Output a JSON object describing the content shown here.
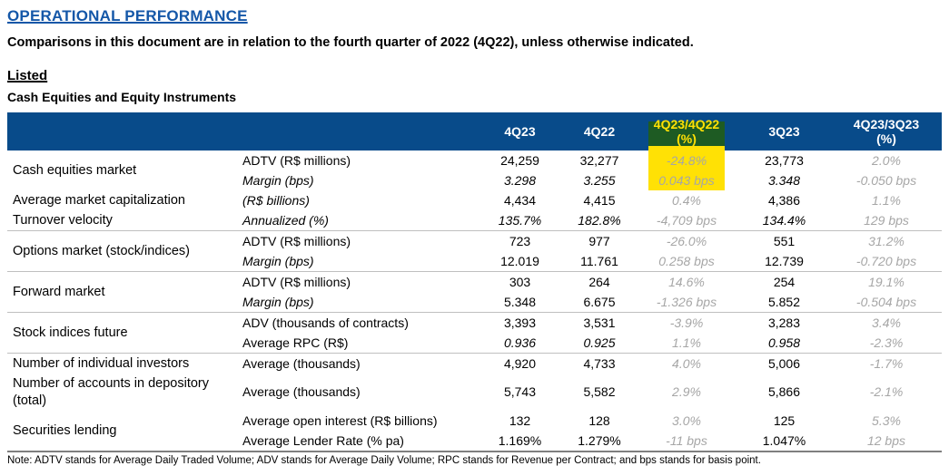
{
  "page": {
    "title": "OPERATIONAL PERFORMANCE",
    "subtitle": "Comparisons in this document are in relation to the fourth quarter of 2022 (4Q22), unless otherwise indicated.",
    "section_heading": "Listed",
    "table_heading": "Cash Equities and Equity Instruments",
    "note": "Note: ADTV stands for Average Daily Traded Volume; ADV stands for Average Daily Volume; RPC stands for Revenue per Contract; and bps stands for basis point."
  },
  "colors": {
    "header_bg": "#084B8A",
    "title_blue": "#1457A8",
    "highlight_green": "#1E5B23",
    "highlight_yellow": "#FFE105",
    "change_gray": "#A6A6A6",
    "separator_light": "#BFBFBF",
    "separator_dark": "#7F7F7F"
  },
  "table": {
    "headers": [
      {
        "label": "4Q23"
      },
      {
        "label": "4Q22"
      },
      {
        "label": "4Q23/4Q22",
        "sub": "(%)",
        "highlight": true
      },
      {
        "label": "3Q23"
      },
      {
        "label": "4Q23/3Q23",
        "sub": "(%)"
      }
    ],
    "rows": [
      {
        "g": "Cash equities market",
        "gs": 2,
        "m": "ADTV (R$ millions)",
        "cells": [
          {
            "t": "24,259"
          },
          {
            "t": "32,277"
          },
          {
            "t": "-24.8%",
            "c": 1,
            "h": 1
          },
          {
            "t": "23,773"
          },
          {
            "t": "2.0%",
            "c": 1
          }
        ]
      },
      {
        "m": "Margin (bps)",
        "mi": 1,
        "cells": [
          {
            "t": "3.298",
            "i": 1
          },
          {
            "t": "3.255",
            "i": 1
          },
          {
            "t": "0.043 bps",
            "c": 1,
            "h": 1
          },
          {
            "t": "3.348",
            "i": 1
          },
          {
            "t": "-0.050 bps",
            "c": 1
          }
        ]
      },
      {
        "g": "Average market capitalization",
        "gs": 1,
        "m": "(R$ billions)",
        "mi": 1,
        "cells": [
          {
            "t": "4,434"
          },
          {
            "t": "4,415"
          },
          {
            "t": "0.4%",
            "c": 1
          },
          {
            "t": "4,386"
          },
          {
            "t": "1.1%",
            "c": 1
          }
        ]
      },
      {
        "g": "Turnover velocity",
        "gs": 1,
        "m": "Annualized (%)",
        "mi": 1,
        "cells": [
          {
            "t": "135.7%",
            "i": 1
          },
          {
            "t": "182.8%",
            "i": 1
          },
          {
            "t": "-4,709 bps",
            "c": 1
          },
          {
            "t": "134.4%",
            "i": 1
          },
          {
            "t": "129 bps",
            "c": 1
          }
        ]
      },
      {
        "s": 1,
        "g": "Options market (stock/indices)",
        "gs": 2,
        "m": "ADTV (R$ millions)",
        "cells": [
          {
            "t": "723"
          },
          {
            "t": "977"
          },
          {
            "t": "-26.0%",
            "c": 1
          },
          {
            "t": "551"
          },
          {
            "t": "31.2%",
            "c": 1
          }
        ]
      },
      {
        "m": "Margin (bps)",
        "mi": 1,
        "cells": [
          {
            "t": "12.019"
          },
          {
            "t": "11.761"
          },
          {
            "t": "0.258 bps",
            "c": 1
          },
          {
            "t": "12.739"
          },
          {
            "t": "-0.720 bps",
            "c": 1
          }
        ]
      },
      {
        "s": 1,
        "g": "Forward market",
        "gs": 2,
        "m": "ADTV (R$ millions)",
        "cells": [
          {
            "t": "303"
          },
          {
            "t": "264"
          },
          {
            "t": "14.6%",
            "c": 1
          },
          {
            "t": "254"
          },
          {
            "t": "19.1%",
            "c": 1
          }
        ]
      },
      {
        "m": "Margin (bps)",
        "mi": 1,
        "cells": [
          {
            "t": "5.348"
          },
          {
            "t": "6.675"
          },
          {
            "t": "-1.326 bps",
            "c": 1
          },
          {
            "t": "5.852"
          },
          {
            "t": "-0.504 bps",
            "c": 1
          }
        ]
      },
      {
        "s": 1,
        "g": "Stock indices future",
        "gs": 2,
        "m": "ADV (thousands of contracts)",
        "cells": [
          {
            "t": "3,393"
          },
          {
            "t": "3,531"
          },
          {
            "t": "-3.9%",
            "c": 1
          },
          {
            "t": "3,283"
          },
          {
            "t": "3.4%",
            "c": 1
          }
        ]
      },
      {
        "m": "Average RPC (R$)",
        "cells": [
          {
            "t": "0.936",
            "i": 1
          },
          {
            "t": "0.925",
            "i": 1
          },
          {
            "t": "1.1%",
            "c": 1
          },
          {
            "t": "0.958",
            "i": 1
          },
          {
            "t": "-2.3%",
            "c": 1
          }
        ]
      },
      {
        "s": 1,
        "g": "Number of individual investors",
        "gs": 1,
        "m": "Average (thousands)",
        "cells": [
          {
            "t": "4,920"
          },
          {
            "t": "4,733"
          },
          {
            "t": "4.0%",
            "c": 1
          },
          {
            "t": "5,006"
          },
          {
            "t": "-1.7%",
            "c": 1
          }
        ]
      },
      {
        "g": "Number of accounts in depository (total)",
        "gs": 1,
        "m": "Average (thousands)",
        "cells": [
          {
            "t": "5,743"
          },
          {
            "t": "5,582"
          },
          {
            "t": "2.9%",
            "c": 1
          },
          {
            "t": "5,866"
          },
          {
            "t": "-2.1%",
            "c": 1
          }
        ]
      },
      {
        "g": "Securities lending",
        "gs": 2,
        "m": "Average open interest (R$ billions)",
        "cells": [
          {
            "t": "132"
          },
          {
            "t": "128"
          },
          {
            "t": "3.0%",
            "c": 1
          },
          {
            "t": "125"
          },
          {
            "t": "5.3%",
            "c": 1
          }
        ]
      },
      {
        "m": "Average Lender Rate (% pa)",
        "cells": [
          {
            "t": "1.169%"
          },
          {
            "t": "1.279%"
          },
          {
            "t": "-11 bps",
            "c": 1
          },
          {
            "t": "1.047%"
          },
          {
            "t": "12 bps",
            "c": 1
          }
        ]
      }
    ]
  }
}
